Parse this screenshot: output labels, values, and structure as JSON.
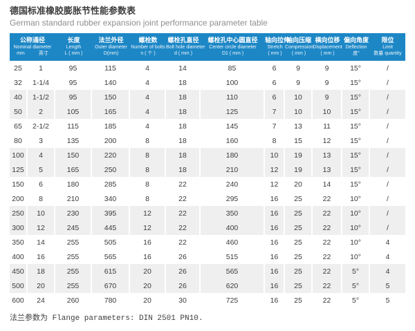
{
  "header": {
    "title_zh": "德国标准橡胶膨胀节性能参数表",
    "title_en": "German standard rubber expansion joint performance parameter table"
  },
  "colors": {
    "header_bg": "#1d87c6",
    "stripe_bg": "#efefef",
    "header_text": "#ffffff",
    "body_text": "#3a3a3a"
  },
  "table": {
    "columns": [
      {
        "zh": "公称通径",
        "en": "Nominal diameter",
        "units": [
          "mm",
          "英寸"
        ],
        "span": 2
      },
      {
        "zh": "长度",
        "en": "Length",
        "unit": "L ( mm )"
      },
      {
        "zh": "法兰外径",
        "en": "Outer diameter",
        "unit": "D(mm)"
      },
      {
        "zh": "螺栓数",
        "en": "Number of bolts",
        "unit": "n ( 个 )"
      },
      {
        "zh": "螺栓孔直径",
        "en": "Bolt hole diameter",
        "unit": "d ( mm )"
      },
      {
        "zh": "螺栓孔中心圆直径",
        "en": "Center circle diameter",
        "unit": "D1 ( mm )"
      },
      {
        "zh": "轴向拉伸",
        "en": "Stretch",
        "unit": "( mm )"
      },
      {
        "zh": "轴向压缩",
        "en": "Compression",
        "unit": "( mm )"
      },
      {
        "zh": "横向位移",
        "en": "Displacement",
        "unit": "( mm )"
      },
      {
        "zh": "偏向角度",
        "en": "Deflection",
        "unit": "度°"
      },
      {
        "zh": "限位",
        "en": "Limit",
        "unit": "数量 quantity"
      }
    ],
    "rows": [
      [
        "25",
        "1",
        "95",
        "115",
        "4",
        "14",
        "85",
        "6",
        "9",
        "9",
        "15°",
        "/"
      ],
      [
        "32",
        "1-1/4",
        "95",
        "140",
        "4",
        "18",
        "100",
        "6",
        "9",
        "9",
        "15°",
        "/"
      ],
      [
        "40",
        "1-1/2",
        "95",
        "150",
        "4",
        "18",
        "110",
        "6",
        "10",
        "9",
        "15°",
        "/"
      ],
      [
        "50",
        "2",
        "105",
        "165",
        "4",
        "18",
        "125",
        "7",
        "10",
        "10",
        "15°",
        "/"
      ],
      [
        "65",
        "2-1/2",
        "115",
        "185",
        "4",
        "18",
        "145",
        "7",
        "13",
        "11",
        "15°",
        "/"
      ],
      [
        "80",
        "3",
        "135",
        "200",
        "8",
        "18",
        "160",
        "8",
        "15",
        "12",
        "15°",
        "/"
      ],
      [
        "100",
        "4",
        "150",
        "220",
        "8",
        "18",
        "180",
        "10",
        "19",
        "13",
        "15°",
        "/"
      ],
      [
        "125",
        "5",
        "165",
        "250",
        "8",
        "18",
        "210",
        "12",
        "19",
        "13",
        "15°",
        "/"
      ],
      [
        "150",
        "6",
        "180",
        "285",
        "8",
        "22",
        "240",
        "12",
        "20",
        "14",
        "15°",
        "/"
      ],
      [
        "200",
        "8",
        "210",
        "340",
        "8",
        "22",
        "295",
        "16",
        "25",
        "22",
        "10°",
        "/"
      ],
      [
        "250",
        "10",
        "230",
        "395",
        "12",
        "22",
        "350",
        "16",
        "25",
        "22",
        "10°",
        "/"
      ],
      [
        "300",
        "12",
        "245",
        "445",
        "12",
        "22",
        "400",
        "16",
        "25",
        "22",
        "10°",
        "/"
      ],
      [
        "350",
        "14",
        "255",
        "505",
        "16",
        "22",
        "460",
        "16",
        "25",
        "22",
        "10°",
        "4"
      ],
      [
        "400",
        "16",
        "255",
        "565",
        "16",
        "26",
        "515",
        "16",
        "25",
        "22",
        "10°",
        "4"
      ],
      [
        "450",
        "18",
        "255",
        "615",
        "20",
        "26",
        "565",
        "16",
        "25",
        "22",
        "5°",
        "4"
      ],
      [
        "500",
        "20",
        "255",
        "670",
        "20",
        "26",
        "620",
        "16",
        "25",
        "22",
        "5°",
        "5"
      ],
      [
        "600",
        "24",
        "260",
        "780",
        "20",
        "30",
        "725",
        "16",
        "25",
        "22",
        "5°",
        "5"
      ]
    ]
  },
  "footer": {
    "text": "法兰参数为 Flange parameters: DIN 2501 PN10."
  }
}
